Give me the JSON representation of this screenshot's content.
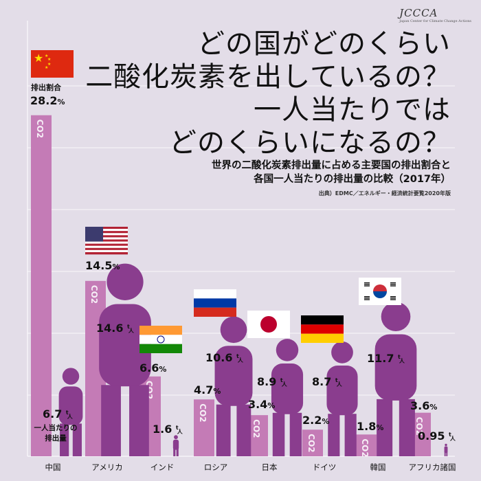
{
  "logo": "JCCCA",
  "title_lines": [
    "どの国がどのくらい",
    "二酸化炭素を出しているの？",
    "一人当たりでは",
    "どのくらいになるの？"
  ],
  "subtitle_lines": [
    "世界の二酸化炭素排出量に占める主要国の排出割合と",
    "各国一人当たりの排出量の比較（2017年）"
  ],
  "source": "出典）EDMC／エネルギー・経済統計要覧2020年版",
  "labels": {
    "share_heading": "排出割合",
    "per_capita_line1": "一人当たりの",
    "per_capita_line2": "排出量",
    "co2": "CO2",
    "unit_top": "t",
    "unit_bottom": "人"
  },
  "colors": {
    "background": "#e3dde8",
    "share_bar": "#c47bb6",
    "person": "#8a3d8e",
    "grid": "#ffffff"
  },
  "chart_data": {
    "type": "bar",
    "categories": [
      "中国",
      "アメリカ",
      "インド",
      "ロシア",
      "日本",
      "ドイツ",
      "韓国",
      "アフリカ諸国"
    ],
    "series": [
      {
        "name": "排出割合",
        "unit": "%",
        "values": [
          28.2,
          14.5,
          6.6,
          4.7,
          3.4,
          2.2,
          1.8,
          3.6
        ]
      },
      {
        "name": "一人当たりの排出量",
        "unit": "t/人",
        "values": [
          6.7,
          14.6,
          1.6,
          10.6,
          8.9,
          8.7,
          11.7,
          0.95
        ]
      }
    ],
    "flags": [
      "china",
      "usa",
      "india",
      "russia",
      "japan",
      "germany",
      "korea",
      null
    ],
    "title": "世界の二酸化炭素排出量に占める主要国の排出割合と各国一人当たりの排出量の比較（2017年）"
  }
}
